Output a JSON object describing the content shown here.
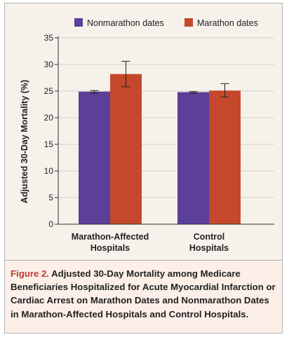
{
  "chart_data": {
    "type": "bar",
    "ylabel": "Adjusted 30-Day Mortality (%)",
    "ylim": [
      0,
      35
    ],
    "yticks": [
      "0",
      "5",
      "10",
      "15",
      "20",
      "25",
      "30",
      "35"
    ],
    "categories": [
      [
        "Marathon-Affected",
        "Hospitals"
      ],
      [
        "Control",
        "Hospitals"
      ]
    ],
    "series": [
      {
        "name": "Nonmarathon dates",
        "color": "#5b3f99",
        "values": [
          24.9,
          24.8
        ],
        "error_low": [
          24.6,
          24.6
        ],
        "error_high": [
          25.1,
          24.9
        ]
      },
      {
        "name": "Marathon dates",
        "color": "#c5482c",
        "values": [
          28.2,
          25.1
        ],
        "error_low": [
          25.8,
          23.9
        ],
        "error_high": [
          30.6,
          26.4
        ]
      }
    ],
    "legend_position": "top",
    "grid": true
  },
  "caption": {
    "label": "Figure 2.",
    "text": "Adjusted 30-Day Mortality among Medicare Beneficiaries Hospitalized for Acute Myocardial Infarction or Cardiac Arrest on Marathon Dates and Nonmarathon Dates in Marathon-Affected Hospitals and Control Hospitals."
  }
}
